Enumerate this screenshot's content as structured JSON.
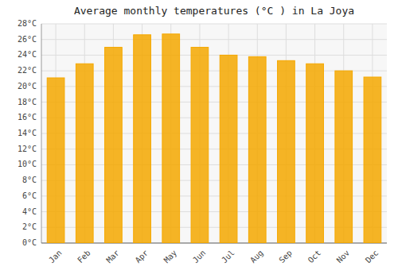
{
  "chart_data": {
    "type": "bar",
    "title": "Average monthly temperatures (°C ) in La Joya",
    "categories": [
      "Jan",
      "Feb",
      "Mar",
      "Apr",
      "May",
      "Jun",
      "Jul",
      "Aug",
      "Sep",
      "Oct",
      "Nov",
      "Dec"
    ],
    "values": [
      21.1,
      22.9,
      25.0,
      26.6,
      26.7,
      25.0,
      24.0,
      23.8,
      23.3,
      22.9,
      22.0,
      21.2
    ],
    "color": "#F5A800",
    "ylim": [
      0,
      28
    ],
    "yticks": [
      {
        "value": 0,
        "label": "0°C"
      },
      {
        "value": 2,
        "label": "2°C"
      },
      {
        "value": 4,
        "label": "4°C"
      },
      {
        "value": 6,
        "label": "6°C"
      },
      {
        "value": 8,
        "label": "8°C"
      },
      {
        "value": 10,
        "label": "10°C"
      },
      {
        "value": 12,
        "label": "12°C"
      },
      {
        "value": 14,
        "label": "14°C"
      },
      {
        "value": 16,
        "label": "16°C"
      },
      {
        "value": 18,
        "label": "18°C"
      },
      {
        "value": 20,
        "label": "20°C"
      },
      {
        "value": 22,
        "label": "22°C"
      },
      {
        "value": 24,
        "label": "24°C"
      },
      {
        "value": 26,
        "label": "26°C"
      },
      {
        "value": 28,
        "label": "28°C"
      }
    ],
    "grid": true
  }
}
